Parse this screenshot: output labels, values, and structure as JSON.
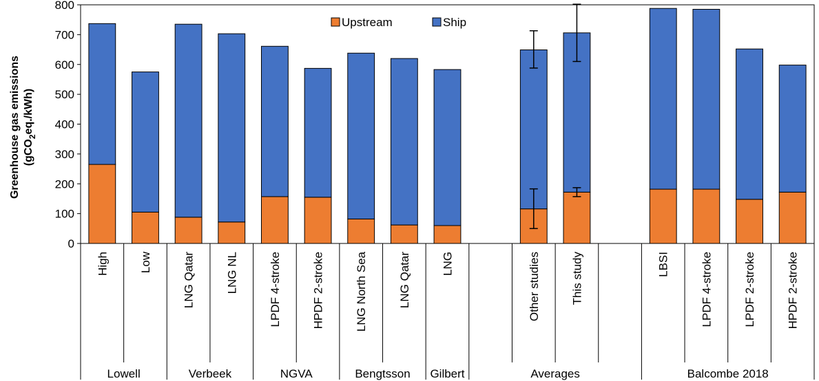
{
  "chart_data": {
    "type": "bar",
    "stacked": true,
    "ylabel_line1": "Greenhouse gas emissions",
    "ylabel_line2_pre": "(gCO",
    "ylabel_line2_sub": "2",
    "ylabel_line2_post": "eq./kWh)",
    "ylim": [
      0,
      800
    ],
    "yticks": [
      0,
      100,
      200,
      300,
      400,
      500,
      600,
      700,
      800
    ],
    "legend": {
      "placement": "top-center",
      "items": [
        "Upstream",
        "Ship"
      ]
    },
    "colors": {
      "upstream": "#ED7D31",
      "ship": "#4472C4",
      "edge": "#000000"
    },
    "grid": false,
    "categories": [
      "High",
      "Low",
      "LNG Qatar",
      "LNG NL",
      "LPDF 4-stroke",
      "HPDF 2-stroke",
      "LNG North Sea",
      "LNG Qatar",
      "LNG",
      "",
      "Other studies",
      "This study",
      "",
      "LBSI",
      "LPDF 4-stroke",
      "LPDF 2-stroke",
      "HPDF 2-stroke"
    ],
    "groups": [
      {
        "label": "Lowell",
        "start": 0,
        "end": 1
      },
      {
        "label": "Verbeek",
        "start": 2,
        "end": 3
      },
      {
        "label": "NGVA",
        "start": 4,
        "end": 5
      },
      {
        "label": "Bengtsson",
        "start": 6,
        "end": 7
      },
      {
        "label": "Gilbert",
        "start": 8,
        "end": 8
      },
      {
        "label": "Averages",
        "start": 9,
        "end": 12
      },
      {
        "label": "Balcombe 2018",
        "start": 13,
        "end": 16
      }
    ],
    "series": [
      {
        "name": "Upstream",
        "values": [
          265,
          105,
          88,
          72,
          157,
          155,
          82,
          62,
          60,
          null,
          116,
          172,
          null,
          182,
          182,
          148,
          172
        ]
      },
      {
        "name": "Ship",
        "values": [
          472,
          470,
          647,
          631,
          504,
          432,
          556,
          558,
          523,
          null,
          533,
          534,
          null,
          606,
          603,
          504,
          426
        ]
      }
    ],
    "error_bars": [
      {
        "index": 10,
        "series": "Upstream",
        "low": 50,
        "high": 183
      },
      {
        "index": 10,
        "series": "Total",
        "low": 588,
        "high": 713
      },
      {
        "index": 11,
        "series": "Upstream",
        "low": 157,
        "high": 187
      },
      {
        "index": 11,
        "series": "Total",
        "low": 610,
        "high": 802
      }
    ]
  }
}
